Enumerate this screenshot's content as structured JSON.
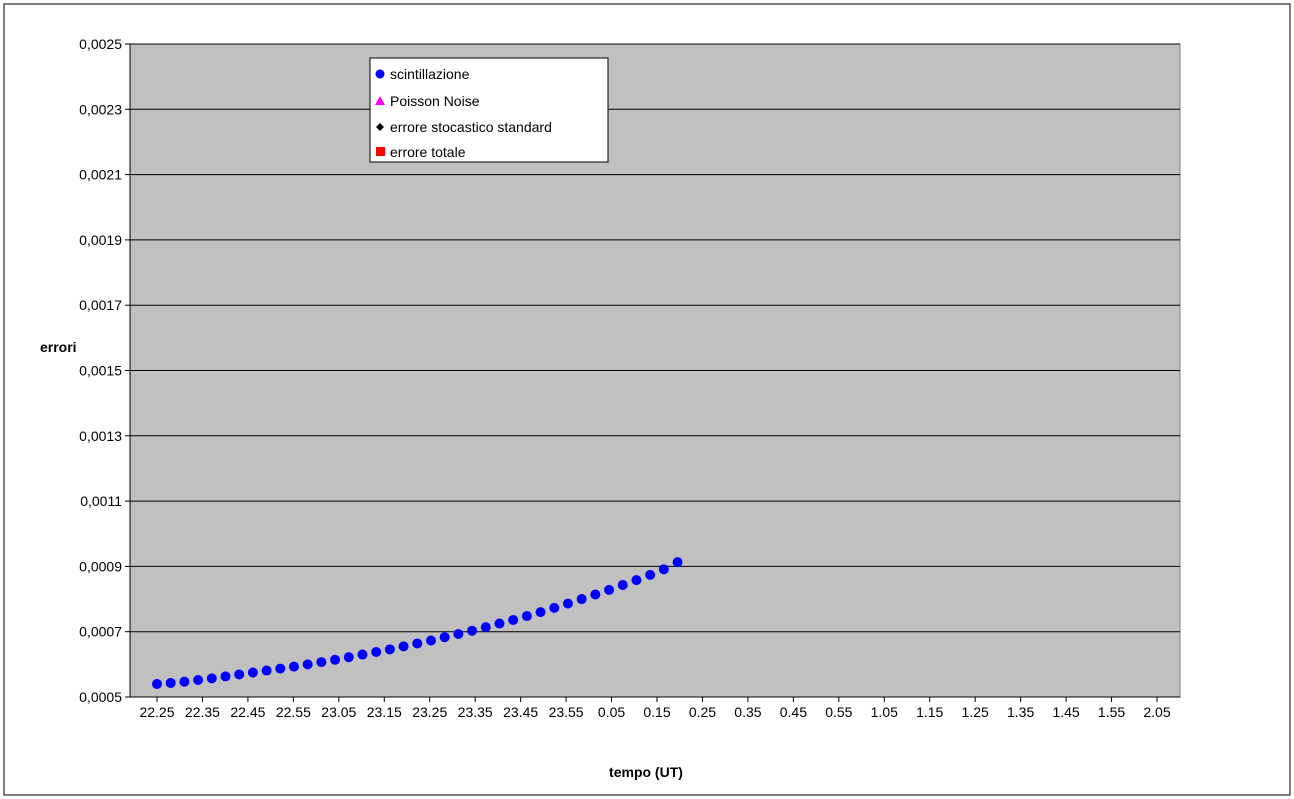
{
  "chart_data": {
    "type": "scatter",
    "title": "",
    "xlabel": "tempo (UT)",
    "ylabel": "errori",
    "ylim": [
      0.0005,
      0.0025
    ],
    "y_ticks": [
      "0,0005",
      "0,0007",
      "0,0009",
      "0,0011",
      "0,0013",
      "0,0015",
      "0,0017",
      "0,0019",
      "0,0021",
      "0,0023",
      "0,0025"
    ],
    "y_tick_values": [
      0.0005,
      0.0007,
      0.0009,
      0.0011,
      0.0013,
      0.0015,
      0.0017,
      0.0019,
      0.0021,
      0.0023,
      0.0025
    ],
    "x_count": 74,
    "x_tick_labels": [
      "22.25",
      "22.35",
      "22.45",
      "22.55",
      "23.05",
      "23.15",
      "23.25",
      "23.35",
      "23.45",
      "23.55",
      "0.05",
      "0.15",
      "0.25",
      "0.35",
      "0.45",
      "0.55",
      "1.05",
      "1.15",
      "1.25",
      "1.35",
      "1.45",
      "1.55",
      "2.05"
    ],
    "x_tick_index_step": 3.35,
    "grid": "horizontal",
    "legend_position": "top-center",
    "background": "#c0c0c0",
    "series": [
      {
        "name": "scintillazione",
        "marker": "circle",
        "color": "#0000ff",
        "values": [
          0.00054,
          0.000543,
          0.000547,
          0.000552,
          0.000557,
          0.000563,
          0.000569,
          0.000575,
          0.000581,
          0.000587,
          0.000593,
          0.0006,
          0.000607,
          0.000614,
          0.000622,
          0.00063,
          0.000638,
          0.000646,
          0.000655,
          0.000664,
          0.000673,
          0.000683,
          0.000693,
          0.000703,
          0.000714,
          0.000725,
          0.000736,
          0.000748,
          0.00076,
          0.000773,
          0.000786,
          0.0008,
          0.000814,
          0.000828,
          0.000843,
          0.000858,
          0.000874,
          0.000891,
          0.000913,
          null,
          null,
          null,
          null,
          null,
          null,
          null,
          null,
          null,
          null,
          null,
          null,
          null,
          null,
          null,
          null,
          null,
          null,
          null,
          null,
          null,
          null,
          null,
          null,
          null,
          null,
          null,
          null,
          null,
          null,
          null,
          null,
          null,
          null,
          null
        ]
      }
    ]
  },
  "legend": [
    {
      "label": "scintillazione",
      "color": "#0000ff",
      "marker": "circle"
    },
    {
      "label": "Poisson Noise",
      "color": "#ff00ff",
      "marker": "triangle"
    },
    {
      "label": "errore stocastico standard",
      "color": "#000000",
      "marker": "diamond"
    },
    {
      "label": "errore totale",
      "color": "#ff0000",
      "marker": "square"
    }
  ]
}
